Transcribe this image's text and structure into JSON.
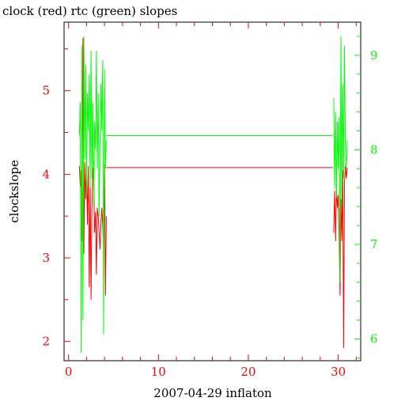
{
  "chart_data": {
    "type": "line",
    "title": "clock (red) rtc (green) slopes",
    "xlabel": "2007-04-29 inflaton",
    "ylabel": "clockslope",
    "xlim": [
      -0.5,
      32.5
    ],
    "xticks": [
      0,
      10,
      20,
      30
    ],
    "y_left": {
      "lim": [
        1.77,
        5.82
      ],
      "ticks": [
        2,
        3,
        4,
        5
      ],
      "color": "#ff0000"
    },
    "y_right": {
      "lim": [
        5.77,
        9.35
      ],
      "ticks": [
        6,
        7,
        8,
        9
      ],
      "color": "#00ff00"
    },
    "grid": false,
    "series": [
      {
        "name": "clock",
        "axis": "left",
        "color": "#ff0000",
        "x": [
          1.2,
          1.3,
          1.4,
          1.5,
          1.6,
          1.7,
          1.8,
          1.9,
          2.0,
          2.1,
          2.2,
          2.3,
          2.4,
          2.5,
          2.6,
          2.7,
          2.8,
          2.9,
          3.0,
          3.1,
          3.2,
          3.3,
          3.4,
          3.5,
          3.6,
          3.7,
          3.8,
          3.9,
          4.0,
          4.1,
          4.2,
          29.5,
          29.6,
          29.7,
          29.8,
          29.9,
          30.0,
          30.1,
          30.2,
          30.3,
          30.4,
          30.5,
          30.6,
          30.7,
          30.8,
          30.9,
          31.0
        ],
        "y": [
          4.1,
          3.85,
          4.05,
          3.2,
          5.63,
          3.05,
          4.15,
          3.7,
          4.12,
          3.4,
          4.1,
          2.65,
          3.9,
          2.5,
          3.6,
          4.08,
          3.9,
          3.3,
          3.55,
          2.8,
          3.6,
          3.5,
          3.3,
          3.1,
          3.4,
          3.6,
          3.4,
          3.1,
          4.12,
          2.55,
          3.5,
          3.3,
          3.8,
          3.2,
          3.85,
          3.6,
          3.75,
          3.3,
          2.55,
          3.7,
          3.2,
          4.05,
          1.92,
          3.9,
          4.1,
          3.95,
          4.08
        ],
        "flat": {
          "y": 4.08,
          "x_from": 4.2,
          "x_to": 29.4
        }
      },
      {
        "name": "rtc",
        "axis": "right",
        "color": "#00ff00",
        "x": [
          1.2,
          1.3,
          1.4,
          1.5,
          1.6,
          1.7,
          1.8,
          1.9,
          2.0,
          2.1,
          2.2,
          2.3,
          2.4,
          2.5,
          2.6,
          2.7,
          2.8,
          2.9,
          3.0,
          3.1,
          3.2,
          3.3,
          3.4,
          3.5,
          3.6,
          3.7,
          3.8,
          3.9,
          4.0,
          4.1,
          4.2,
          29.5,
          29.6,
          29.7,
          29.8,
          29.9,
          30.0,
          30.1,
          30.2,
          30.3,
          30.4,
          30.5,
          30.6,
          30.7,
          30.8,
          30.9,
          31.0
        ],
        "y": [
          8.15,
          8.5,
          5.85,
          9.1,
          6.2,
          9.2,
          7.9,
          8.9,
          7.5,
          8.6,
          8.2,
          8.8,
          7.6,
          9.05,
          7.7,
          8.5,
          7.4,
          8.3,
          8.0,
          9.05,
          7.8,
          8.6,
          7.3,
          8.1,
          8.7,
          8.2,
          8.95,
          6.05,
          8.85,
          7.8,
          8.1,
          8.55,
          7.6,
          8.4,
          7.5,
          8.3,
          7.8,
          8.35,
          6.6,
          9.2,
          7.4,
          8.7,
          7.7,
          9.1,
          8.0,
          7.8,
          8.1
        ],
        "flat": {
          "y": 8.15,
          "x_from": 4.2,
          "x_to": 29.4
        }
      }
    ]
  }
}
